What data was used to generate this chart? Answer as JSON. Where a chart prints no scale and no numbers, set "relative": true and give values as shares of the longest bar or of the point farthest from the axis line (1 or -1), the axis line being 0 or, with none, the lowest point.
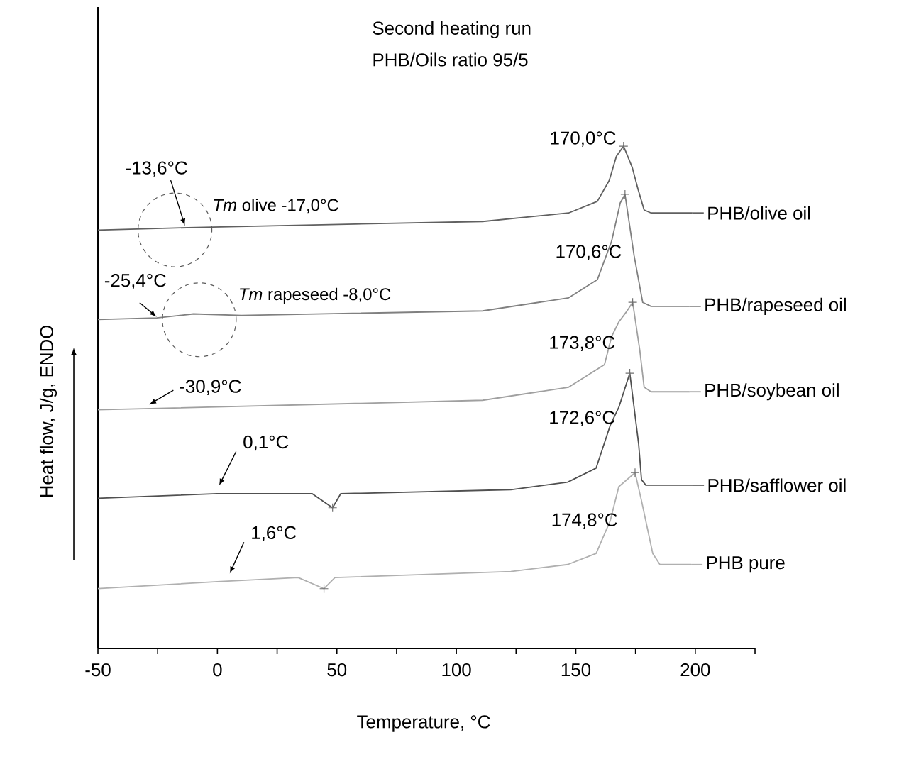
{
  "chart_data": {
    "type": "line",
    "title": "Second heating run",
    "subtitle": "PHB/Oils ratio 95/5",
    "xlabel": "Temperature, °C",
    "ylabel": "Heat flow, J/g, ENDO",
    "relative": true,
    "xlim": [
      -50,
      225
    ],
    "legend": "right",
    "xticks": [
      -50,
      {
        "value": -25,
        "label": null
      },
      0,
      {
        "value": 25,
        "label": null
      },
      50,
      {
        "value": 75,
        "label": null
      },
      100,
      {
        "value": 125,
        "label": null
      },
      150,
      {
        "value": 175,
        "label": null
      },
      200,
      {
        "value": 225,
        "label": null
      }
    ],
    "series": [
      {
        "name": "PHB/olive oil",
        "color": "#606060",
        "x": [
          -50,
          -2,
          57.7,
          111,
          147,
          159,
          164,
          167,
          170,
          173.6,
          176,
          178.6,
          181.5,
          198.8
        ],
        "values": [
          0.833,
          0.839,
          0.845,
          0.85,
          0.867,
          0.89,
          0.932,
          0.98,
          1.0,
          0.958,
          0.915,
          0.873,
          0.867,
          0.867
        ]
      },
      {
        "name": "PHB/rapeseed oil",
        "color": "#808080",
        "x": [
          -50,
          -25.4,
          -10,
          10,
          111,
          147,
          159,
          165,
          168.6,
          170.6,
          174.4,
          178,
          181.5,
          197.6
        ],
        "values": [
          0.655,
          0.658,
          0.666,
          0.663,
          0.672,
          0.698,
          0.734,
          0.811,
          0.887,
          0.904,
          0.782,
          0.689,
          0.681,
          0.681
        ]
      },
      {
        "name": "PHB/soybean oil",
        "color": "#a0a0a0",
        "x": [
          -50,
          111,
          147,
          162,
          165,
          168,
          171,
          173.8,
          176.8,
          178.6,
          181.5,
          197.6
        ],
        "values": [
          0.475,
          0.494,
          0.52,
          0.565,
          0.621,
          0.65,
          0.669,
          0.689,
          0.593,
          0.52,
          0.511,
          0.511
        ]
      },
      {
        "name": "PHB/safflower oil",
        "color": "#505050",
        "x": [
          -50,
          0,
          39.7,
          48.2,
          51.6,
          122.8,
          146.6,
          158.5,
          164.4,
          168,
          172.6,
          176.3,
          177.5,
          179.3,
          198.9
        ],
        "values": [
          0.299,
          0.308,
          0.308,
          0.28,
          0.308,
          0.316,
          0.331,
          0.359,
          0.444,
          0.48,
          0.548,
          0.407,
          0.336,
          0.325,
          0.325
        ]
      },
      {
        "name": "PHB pure",
        "color": "#b0b0b0",
        "x": [
          -50,
          0,
          33.8,
          44.6,
          49.2,
          122.8,
          146.6,
          158.5,
          164.4,
          168,
          174.8,
          177.5,
          182.2,
          185.2,
          198.3
        ],
        "values": [
          0.119,
          0.133,
          0.141,
          0.119,
          0.141,
          0.153,
          0.167,
          0.189,
          0.254,
          0.322,
          0.35,
          0.294,
          0.189,
          0.167,
          0.167
        ]
      },
      {
        "type": "scatter",
        "marker": "cross",
        "color": "#707070",
        "x": [
          170.0,
          170.6,
          173.8,
          172.6,
          174.8,
          48.2,
          44.6
        ],
        "values": [
          1.0,
          0.904,
          0.689,
          0.548,
          0.35,
          0.28,
          0.119
        ]
      }
    ],
    "annotations": [
      {
        "text": "-13,6°C",
        "x": -13.6,
        "y": 0.836
      },
      {
        "text": "*Tm* olive -17,0°C",
        "x": -17.0,
        "y": 0.836
      },
      {
        "text": "-25,4°C",
        "x": -25.4,
        "y": 0.66
      },
      {
        "text": "*Tm* rapeseed -8,0°C",
        "x": -8.0,
        "y": 0.66
      },
      {
        "text": "-30,9°C",
        "x": -30.9,
        "y": 0.48
      },
      {
        "text": "0,1°C",
        "x": 0.1,
        "y": 0.31
      },
      {
        "text": "1,6°C",
        "x": 1.6,
        "y": 0.135
      },
      {
        "text": "170,0°C",
        "x": 170.0,
        "y": 1.0
      },
      {
        "text": "170,6°C",
        "x": 170.6,
        "y": 0.904
      },
      {
        "text": "173,8°C",
        "x": 173.8,
        "y": 0.689
      },
      {
        "text": "172,6°C",
        "x": 172.6,
        "y": 0.548
      },
      {
        "text": "174,8°C",
        "x": 174.8,
        "y": 0.35
      }
    ]
  }
}
